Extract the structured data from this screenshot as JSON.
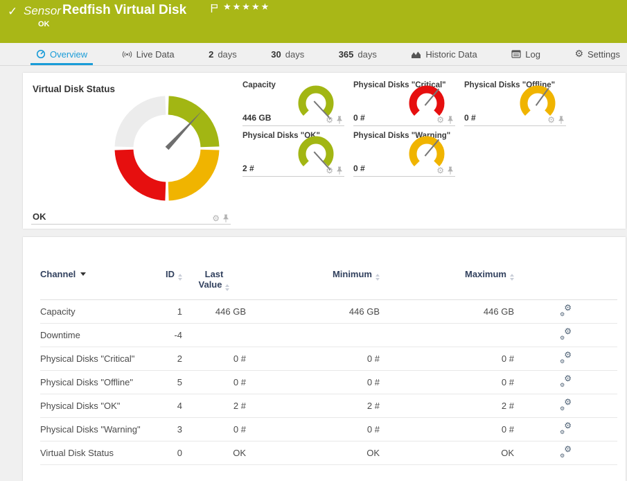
{
  "header": {
    "type_label": "Sensor",
    "title": "Redfish Virtual Disk",
    "status": "OK",
    "stars": "★★★★★",
    "check_glyph": "✓",
    "bg_color": "#a9b717"
  },
  "tabs": {
    "overview": "Overview",
    "live_data": "Live Data",
    "days2_num": "2",
    "days2_unit": "days",
    "days30_num": "30",
    "days30_unit": "days",
    "days365_num": "365",
    "days365_unit": "days",
    "historic": "Historic Data",
    "log": "Log",
    "settings": "Settings",
    "active_color": "#1a9cd8"
  },
  "overview": {
    "main_gauge": {
      "title": "Virtual Disk Status",
      "value": "OK",
      "needle_angle_deg": 43,
      "colors": {
        "ok": "#a2b613",
        "warning": "#f0b400",
        "error": "#e60f0f",
        "none": "#ececec",
        "needle": "#6e6e6e"
      }
    },
    "mini_gauges": [
      {
        "title": "Capacity",
        "value": "446 GB",
        "color": "#a2b613",
        "needle_angle_deg": 137,
        "needle_len": 31
      },
      {
        "title": "Physical Disks \"Critical\"",
        "value": "0 #",
        "color": "#e60f0f",
        "needle_angle_deg": 40,
        "needle_len": 27
      },
      {
        "title": "Physical Disks \"Offline\"",
        "value": "0 #",
        "color": "#f0b400",
        "needle_angle_deg": 36,
        "needle_len": 27
      },
      {
        "title": "Physical Disks \"OK\"",
        "value": "2 #",
        "color": "#a2b613",
        "needle_angle_deg": 138,
        "needle_len": 31
      },
      {
        "title": "Physical Disks \"Warning\"",
        "value": "0 #",
        "color": "#f0b400",
        "needle_angle_deg": 40,
        "needle_len": 27
      }
    ]
  },
  "table": {
    "headers": {
      "channel": "Channel",
      "id": "ID",
      "last_line1": "Last",
      "last_line2": "Value",
      "minimum": "Minimum",
      "maximum": "Maximum"
    },
    "rows": [
      {
        "channel": "Capacity",
        "id": "1",
        "last": "446 GB",
        "min": "446 GB",
        "max": "446 GB"
      },
      {
        "channel": "Downtime",
        "id": "-4",
        "last": "",
        "min": "",
        "max": ""
      },
      {
        "channel": "Physical Disks \"Critical\"",
        "id": "2",
        "last": "0 #",
        "min": "0 #",
        "max": "0 #"
      },
      {
        "channel": "Physical Disks \"Offline\"",
        "id": "5",
        "last": "0 #",
        "min": "0 #",
        "max": "0 #"
      },
      {
        "channel": "Physical Disks \"OK\"",
        "id": "4",
        "last": "2 #",
        "min": "2 #",
        "max": "2 #"
      },
      {
        "channel": "Physical Disks \"Warning\"",
        "id": "3",
        "last": "0 #",
        "min": "0 #",
        "max": "0 #"
      },
      {
        "channel": "Virtual Disk Status",
        "id": "0",
        "last": "OK",
        "min": "OK",
        "max": "OK"
      }
    ]
  }
}
